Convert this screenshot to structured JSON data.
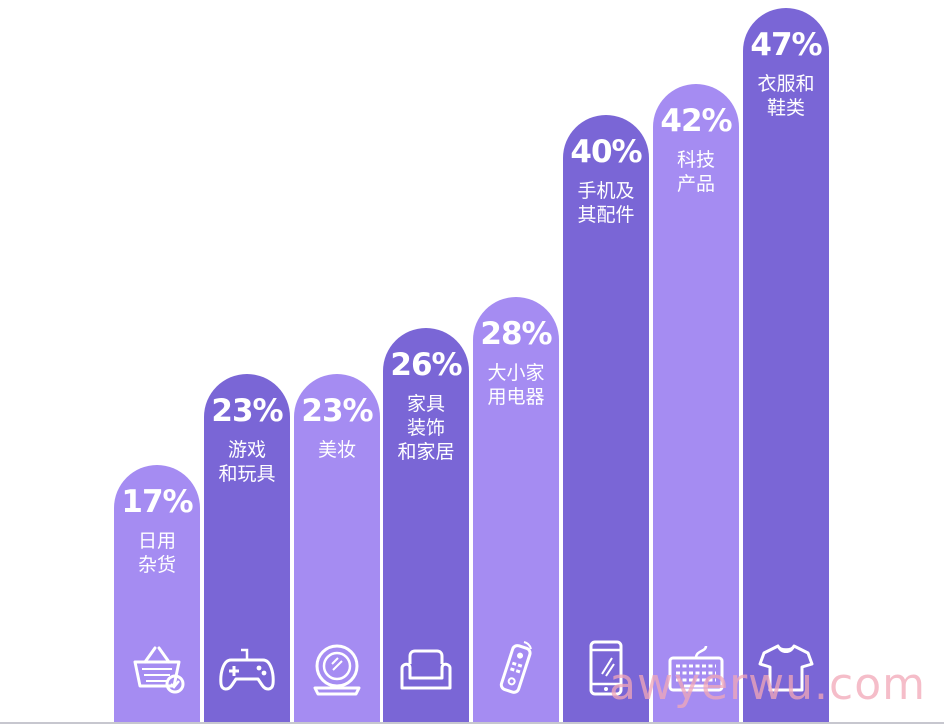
{
  "chart_data": {
    "type": "bar",
    "categories": [
      "日用杂货",
      "游戏和玩具",
      "美妆",
      "家具装饰和家居",
      "大小家用电器",
      "手机及其配件",
      "科技产品",
      "衣服和鞋类"
    ],
    "labels": [
      "日用\n杂货",
      "游戏\n和玩具",
      "美妆",
      "家具\n装饰\n和家居",
      "大小家\n用电器",
      "手机及\n其配件",
      "科技\n产品",
      "衣服和\n鞋类"
    ],
    "values": [
      17,
      23,
      23,
      26,
      28,
      40,
      42,
      47
    ],
    "value_labels": [
      "17%",
      "23%",
      "23%",
      "26%",
      "28%",
      "40%",
      "42%",
      "47%"
    ],
    "icons": [
      "basket-icon",
      "gamepad-icon",
      "compact-mirror-icon",
      "sofa-icon",
      "remote-control-icon",
      "smartphone-icon",
      "keyboard-icon",
      "tshirt-icon"
    ],
    "colors": [
      "#a58cf2",
      "#7a66d6",
      "#a58cf2",
      "#7a66d6",
      "#a58cf2",
      "#7a66d6",
      "#a58cf2",
      "#7a66d6"
    ],
    "ylim": [
      0,
      47
    ],
    "grid": false,
    "legend": "none"
  },
  "watermark": "awyerwu.com"
}
